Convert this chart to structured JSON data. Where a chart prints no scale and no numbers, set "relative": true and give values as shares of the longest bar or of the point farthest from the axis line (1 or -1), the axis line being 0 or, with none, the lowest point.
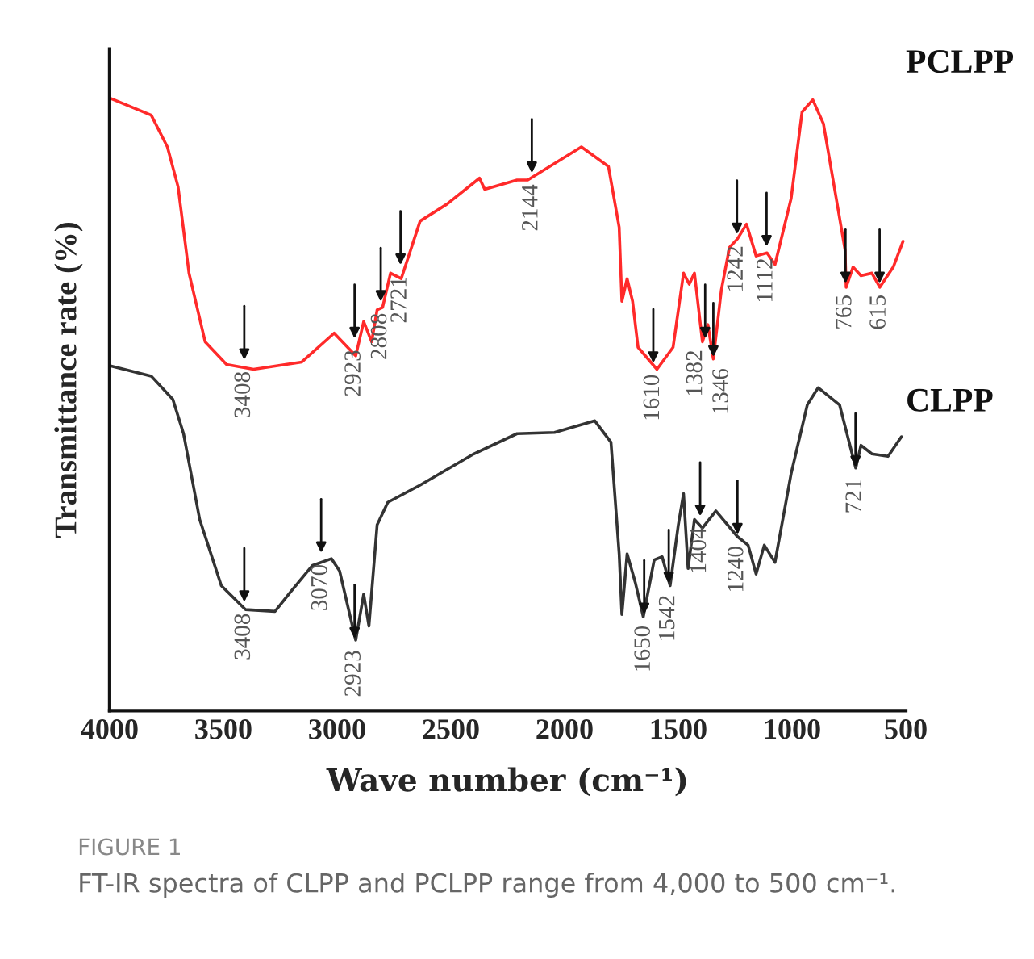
{
  "chart_data": {
    "type": "line",
    "relative": true,
    "xlabel": "Wave number (cm⁻¹)",
    "ylabel": "Transmittance rate (%)",
    "xlim": [
      4000,
      500
    ],
    "xticks": [
      4000,
      3500,
      3000,
      2500,
      2000,
      1500,
      1000,
      500
    ],
    "legend": false,
    "grid": false,
    "marker": "none",
    "line_style": "solid",
    "series": [
      {
        "name": "PCLPP",
        "color": "#ff2a2a",
        "x": [
          4000,
          3817,
          3746,
          3699,
          3651,
          3580,
          3486,
          3367,
          3155,
          3013,
          2918,
          2883,
          2848,
          2824,
          2800,
          2765,
          2718,
          2635,
          2516,
          2374,
          2351,
          2209,
          2162,
          1926,
          1807,
          1760,
          1748,
          1725,
          1701,
          1677,
          1594,
          1523,
          1477,
          1452,
          1429,
          1394,
          1370,
          1346,
          1311,
          1275,
          1240,
          1200,
          1158,
          1110,
          1075,
          1004,
          956,
          909,
          862,
          767,
          762,
          732,
          697,
          649,
          614,
          555,
          512
        ],
        "values": [
          1.0,
          0.972,
          0.92,
          0.855,
          0.714,
          0.602,
          0.565,
          0.557,
          0.569,
          0.616,
          0.579,
          0.635,
          0.602,
          0.654,
          0.658,
          0.714,
          0.705,
          0.799,
          0.827,
          0.869,
          0.851,
          0.866,
          0.866,
          0.92,
          0.888,
          0.789,
          0.668,
          0.705,
          0.668,
          0.593,
          0.557,
          0.593,
          0.714,
          0.696,
          0.714,
          0.602,
          0.63,
          0.574,
          0.686,
          0.756,
          0.77,
          0.794,
          0.742,
          0.747,
          0.728,
          0.836,
          0.977,
          0.997,
          0.958,
          0.752,
          0.691,
          0.724,
          0.71,
          0.714,
          0.691,
          0.724,
          0.766
        ]
      },
      {
        "name": "CLPP",
        "color": "#333333",
        "x": [
          4000,
          3817,
          3722,
          3675,
          3604,
          3509,
          3403,
          3273,
          3202,
          3108,
          3025,
          2989,
          2918,
          2883,
          2860,
          2824,
          2777,
          2635,
          2399,
          2209,
          2044,
          1867,
          1796,
          1760,
          1748,
          1725,
          1689,
          1654,
          1606,
          1571,
          1536,
          1500,
          1477,
          1457,
          1429,
          1394,
          1335,
          1240,
          1193,
          1158,
          1122,
          1075,
          1004,
          933,
          885,
          791,
          720,
          697,
          649,
          578,
          519
        ],
        "values": [
          0.563,
          0.546,
          0.508,
          0.452,
          0.312,
          0.204,
          0.165,
          0.162,
          0.195,
          0.237,
          0.248,
          0.228,
          0.115,
          0.19,
          0.138,
          0.303,
          0.34,
          0.368,
          0.419,
          0.452,
          0.454,
          0.473,
          0.438,
          0.256,
          0.157,
          0.256,
          0.209,
          0.153,
          0.246,
          0.251,
          0.204,
          0.303,
          0.354,
          0.232,
          0.312,
          0.298,
          0.326,
          0.284,
          0.27,
          0.223,
          0.27,
          0.242,
          0.387,
          0.499,
          0.527,
          0.499,
          0.396,
          0.433,
          0.419,
          0.415,
          0.447
        ]
      }
    ],
    "annotations": [
      {
        "text": "3408",
        "x": 3408,
        "y": 0.565
      },
      {
        "text": "2923",
        "x": 2923,
        "y": 0.6
      },
      {
        "text": "2808",
        "x": 2808,
        "y": 0.66
      },
      {
        "text": "2721",
        "x": 2721,
        "y": 0.72
      },
      {
        "text": "2144",
        "x": 2144,
        "y": 0.87
      },
      {
        "text": "1610",
        "x": 1610,
        "y": 0.56
      },
      {
        "text": "1382",
        "x": 1382,
        "y": 0.6
      },
      {
        "text": "1346",
        "x": 1346,
        "y": 0.57
      },
      {
        "text": "1242",
        "x": 1242,
        "y": 0.77
      },
      {
        "text": "1112",
        "x": 1112,
        "y": 0.75
      },
      {
        "text": "765",
        "x": 765,
        "y": 0.69
      },
      {
        "text": "615",
        "x": 615,
        "y": 0.69
      },
      {
        "text": "3408",
        "x": 3408,
        "y": 0.17
      },
      {
        "text": "3070",
        "x": 3070,
        "y": 0.25
      },
      {
        "text": "2923",
        "x": 2923,
        "y": 0.11
      },
      {
        "text": "1650",
        "x": 1650,
        "y": 0.15
      },
      {
        "text": "1542",
        "x": 1542,
        "y": 0.2
      },
      {
        "text": "1404",
        "x": 1404,
        "y": 0.31
      },
      {
        "text": "1240",
        "x": 1240,
        "y": 0.28
      },
      {
        "text": "721",
        "x": 721,
        "y": 0.39
      },
      "FIGURE 1",
      "FT-IR spectra of CLPP and PCLPP range from 4,000 to 500 cm⁻¹."
    ]
  }
}
